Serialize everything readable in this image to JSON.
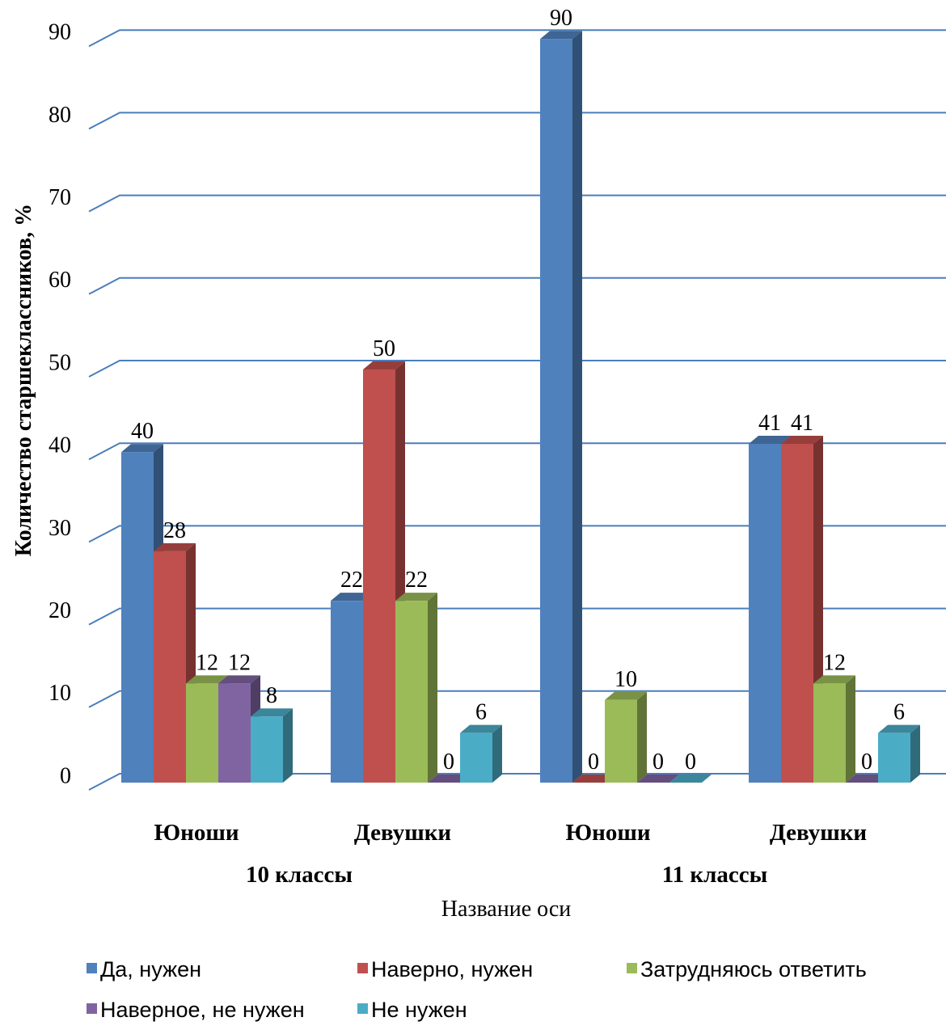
{
  "chart_data": {
    "type": "bar",
    "title": "",
    "ylabel": "Количество старшеклассников, %",
    "xlabel": "Название оси",
    "ylim": [
      0,
      90
    ],
    "yticks": [
      0,
      10,
      20,
      30,
      40,
      50,
      60,
      70,
      80,
      90
    ],
    "grid": true,
    "legend_position": "bottom",
    "categories": [
      "Юноши",
      "Девушки",
      "Юноши",
      "Девушки"
    ],
    "groups": [
      {
        "label": "10 классы",
        "categories": [
          0,
          1
        ]
      },
      {
        "label": "11 классы",
        "categories": [
          2,
          3
        ]
      }
    ],
    "series": [
      {
        "name": "Да, нужен",
        "color": "#4F81BD",
        "values": [
          40,
          22,
          90,
          41
        ]
      },
      {
        "name": "Наверно, нужен",
        "color": "#C0504D",
        "values": [
          28,
          50,
          0,
          41
        ]
      },
      {
        "name": "Затрудняюсь ответить",
        "color": "#9BBB59",
        "values": [
          12,
          22,
          10,
          12
        ]
      },
      {
        "name": "Наверное, не нужен",
        "color": "#8064A2",
        "values": [
          12,
          0,
          0,
          0
        ]
      },
      {
        "name": "Не нужен",
        "color": "#4BACC6",
        "values": [
          8,
          6,
          0,
          6
        ]
      }
    ],
    "data_labels": [
      [
        "40",
        "28",
        "12",
        "12",
        "8"
      ],
      [
        "22",
        "50",
        "22",
        "0",
        "6"
      ],
      [
        "90",
        "0",
        "10",
        "0",
        "0"
      ],
      [
        "41",
        "41",
        "12",
        "0",
        "6"
      ]
    ]
  }
}
